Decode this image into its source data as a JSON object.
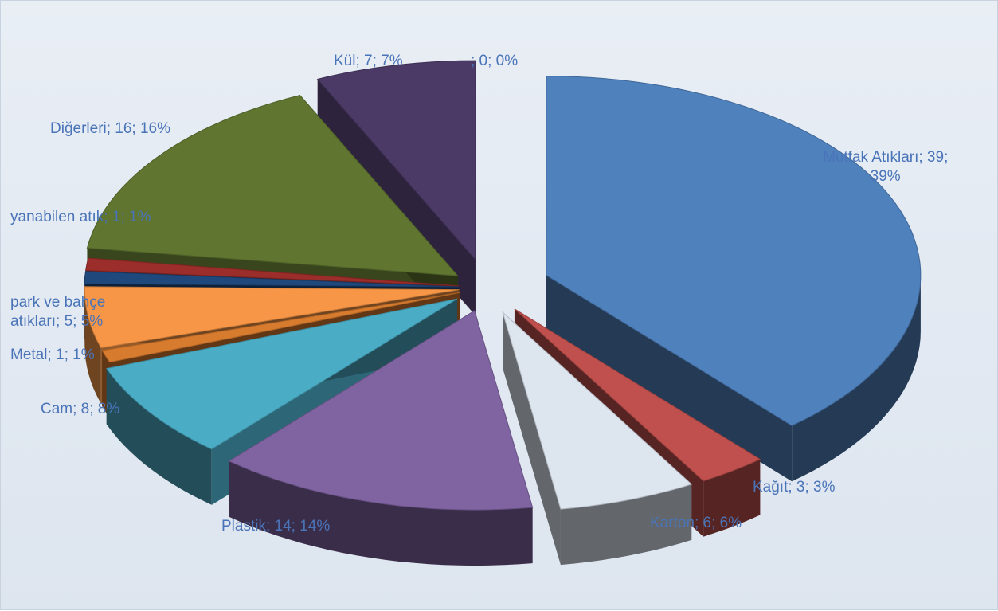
{
  "chart_data": {
    "type": "pie",
    "style": "3d-exploded",
    "title": "",
    "series": [
      {
        "slices": [
          {
            "category": "Mutfak Atıkları",
            "value": 39,
            "percent": 39,
            "color": "#4f81bd",
            "label": "Mutfak Atıkları; 39; 39%"
          },
          {
            "category": "Kağıt",
            "value": 3,
            "percent": 3,
            "color": "#c0504d",
            "label": "Kağıt; 3; 3%"
          },
          {
            "category": "Karton",
            "value": 6,
            "percent": 6,
            "color": "#dde5ef",
            "label": "Karton; 6; 6%"
          },
          {
            "category": "Plastik",
            "value": 14,
            "percent": 14,
            "color": "#8064a2",
            "label": "Plastik; 14; 14%"
          },
          {
            "category": "Cam",
            "value": 8,
            "percent": 8,
            "color": "#4bacc6",
            "label": "Cam; 8; 8%"
          },
          {
            "category": "Metal",
            "value": 1,
            "percent": 1,
            "color": "#d77b2e",
            "label": "Metal; 1; 1%"
          },
          {
            "category": "park ve bahçe atıkları",
            "value": 5,
            "percent": 5,
            "color": "#f79646",
            "label": "park ve bahçe atıkları; 5; 5%"
          },
          {
            "category": "yanabilen atık",
            "value": 1,
            "percent": 1,
            "color": "#1f497d",
            "label": "yanabilen atık; 1; 1%"
          },
          {
            "category": "",
            "value": 1,
            "percent": 1,
            "color": "#9b2d2a",
            "label": ""
          },
          {
            "category": "Diğerleri",
            "value": 16,
            "percent": 16,
            "color": "#5f7530",
            "label": "Diğerleri; 16; 16%"
          },
          {
            "category": "Kül",
            "value": 7,
            "percent": 7,
            "color": "#4b3a66",
            "label": "Kül; 7; 7%"
          },
          {
            "category": "",
            "value": 0,
            "percent": 0,
            "color": "#2f4f75",
            "label": "; 0; 0%"
          }
        ]
      }
    ],
    "data_labels": [
      {
        "id": "mutfak",
        "lines": [
          "Mutfak Atıkları; 39;",
          "39%"
        ]
      },
      {
        "id": "kagit",
        "lines": [
          "Kağıt; 3; 3%"
        ]
      },
      {
        "id": "karton",
        "lines": [
          "Karton; 6; 6%"
        ]
      },
      {
        "id": "plastik",
        "lines": [
          "Plastik; 14; 14%"
        ]
      },
      {
        "id": "cam",
        "lines": [
          "Cam; 8; 8%"
        ]
      },
      {
        "id": "metal",
        "lines": [
          "Metal; 1; 1%"
        ]
      },
      {
        "id": "park",
        "lines": [
          "park ve bahçe",
          "atıkları; 5; 5%"
        ]
      },
      {
        "id": "yanabilen",
        "lines": [
          "yanabilen atık; 1; 1%"
        ]
      },
      {
        "id": "digerleri",
        "lines": [
          "Diğerleri; 16; 16%"
        ]
      },
      {
        "id": "kul",
        "lines": [
          "Kül; 7; 7%"
        ]
      },
      {
        "id": "zero",
        "lines": [
          "; 0; 0%"
        ]
      }
    ],
    "legend": "none",
    "label_color": "#4a74b8"
  }
}
